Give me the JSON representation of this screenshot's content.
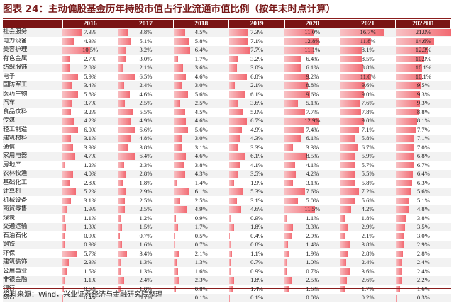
{
  "title": "图表 24：主动偏股基金历年持股市值占行业流通市值比例（按年末时点计算）",
  "source": "资料来源：Wind，兴业证券经济与金融研究院整理",
  "colors": {
    "header_bg": "#7a1414",
    "bar_light": "#f8c2c5",
    "bar_dark": "#f26a72",
    "title": "#7a1c1c"
  },
  "table": {
    "corner": "",
    "columns": [
      "2016",
      "2017",
      "2018",
      "2019",
      "2020",
      "2021",
      "2022H1"
    ],
    "max_value": 21.0,
    "rows": [
      {
        "industry": "社会服务",
        "values": [
          7.3,
          3.8,
          4.5,
          7.3,
          11.0,
          16.7,
          21.0
        ],
        "labels": [
          "7.3%",
          "3.8%",
          "4.5%",
          "7.3%",
          "11.0%",
          "16.7%",
          "21.0%"
        ]
      },
      {
        "industry": "电力设备",
        "values": [
          4.3,
          5.1,
          5.8,
          7.1,
          12.8,
          11.8,
          14.6
        ],
        "labels": [
          "4.3%",
          "5.1%",
          "5.8%",
          "7.1%",
          "12.8%",
          "11.8%",
          "14.6%"
        ]
      },
      {
        "industry": "美容护理",
        "values": [
          10.5,
          3.2,
          6.4,
          7.7,
          11.1,
          8.1,
          12.3
        ],
        "labels": [
          "10.5%",
          "3.2%",
          "6.4%",
          "7.7%",
          "11.1%",
          "8.1%",
          "12.3%"
        ]
      },
      {
        "industry": "有色金属",
        "values": [
          2.7,
          3.0,
          1.7,
          3.2,
          6.4,
          8.5,
          10.9
        ],
        "labels": [
          "2.7%",
          "3.0%",
          "1.7%",
          "3.2%",
          "6.4%",
          "8.5%",
          "10.9%"
        ]
      },
      {
        "industry": "纺织服饰",
        "values": [
          2.8,
          2.1,
          3.6,
          3.0,
          6.1,
          8.8,
          10.1
        ],
        "labels": [
          "2.8%",
          "2.1%",
          "3.6%",
          "3.0%",
          "6.1%",
          "8.8%",
          "10.1%"
        ]
      },
      {
        "industry": "电子",
        "values": [
          5.9,
          6.5,
          4.6,
          6.8,
          9.2,
          11.6,
          10.1
        ],
        "labels": [
          "5.9%",
          "6.5%",
          "4.6%",
          "6.8%",
          "9.2%",
          "11.6%",
          "10.1%"
        ]
      },
      {
        "industry": "国防军工",
        "values": [
          3.4,
          2.4,
          3.0,
          2.1,
          8.8,
          9.6,
          9.5
        ],
        "labels": [
          "3.4%",
          "2.4%",
          "3.0%",
          "2.1%",
          "8.8%",
          "9.6%",
          "9.5%"
        ]
      },
      {
        "industry": "医药生物",
        "values": [
          5.8,
          4.6,
          5.6,
          6.1,
          9.6,
          9.0,
          9.3
        ],
        "labels": [
          "5.8%",
          "4.6%",
          "5.6%",
          "6.1%",
          "9.6%",
          "9.0%",
          "9.3%"
        ]
      },
      {
        "industry": "汽车",
        "values": [
          3.7,
          2.5,
          2.5,
          3.6,
          5.1,
          7.6,
          9.3
        ],
        "labels": [
          "3.7%",
          "2.5%",
          "2.5%",
          "3.6%",
          "5.1%",
          "7.6%",
          "9.3%"
        ]
      },
      {
        "industry": "食品饮料",
        "values": [
          3.2,
          5.5,
          4.5,
          5.0,
          7.7,
          7.8,
          8.8
        ],
        "labels": [
          "3.2%",
          "5.5%",
          "4.5%",
          "5.0%",
          "7.7%",
          "7.8%",
          "8.8%"
        ]
      },
      {
        "industry": "传媒",
        "values": [
          4.2,
          4.9,
          4.6,
          6.7,
          12.9,
          9.0,
          8.1
        ],
        "labels": [
          "4.2%",
          "4.9%",
          "4.6%",
          "6.7%",
          "12.9%",
          "9.0%",
          "8.1%"
        ]
      },
      {
        "industry": "轻工制造",
        "values": [
          6.0,
          6.6,
          5.6,
          4.9,
          7.4,
          7.1,
          7.7
        ],
        "labels": [
          "6.0%",
          "6.6%",
          "5.6%",
          "4.9%",
          "7.4%",
          "7.1%",
          "7.7%"
        ]
      },
      {
        "industry": "建筑材料",
        "values": [
          3.1,
          4.8,
          3.0,
          4.3,
          6.1,
          5.8,
          7.1
        ],
        "labels": [
          "3.1%",
          "4.8%",
          "3.0%",
          "4.3%",
          "6.1%",
          "5.8%",
          "7.1%"
        ]
      },
      {
        "industry": "通信",
        "values": [
          3.9,
          3.8,
          3.1,
          3.3,
          3.3,
          6.7,
          7.0
        ],
        "labels": [
          "3.9%",
          "3.8%",
          "3.1%",
          "3.3%",
          "3.3%",
          "6.7%",
          "7.0%"
        ]
      },
      {
        "industry": "家用电器",
        "values": [
          4.7,
          6.4,
          4.6,
          6.1,
          8.5,
          5.9,
          6.8
        ],
        "labels": [
          "4.7%",
          "6.4%",
          "4.6%",
          "6.1%",
          "8.5%",
          "5.9%",
          "6.8%"
        ]
      },
      {
        "industry": "房地产",
        "values": [
          1.2,
          2.3,
          3.8,
          4.1,
          4.1,
          5.7,
          6.7
        ],
        "labels": [
          "1.2%",
          "2.3%",
          "3.8%",
          "4.1%",
          "4.1%",
          "5.7%",
          "6.7%"
        ]
      },
      {
        "industry": "农林牧渔",
        "values": [
          4.0,
          2.8,
          4.3,
          3.5,
          4.2,
          5.5,
          6.4
        ],
        "labels": [
          "4.0%",
          "2.8%",
          "4.3%",
          "3.5%",
          "4.2%",
          "5.5%",
          "6.4%"
        ]
      },
      {
        "industry": "基础化工",
        "values": [
          2.8,
          1.8,
          1.4,
          1.9,
          3.1,
          5.8,
          6.3
        ],
        "labels": [
          "2.8%",
          "1.8%",
          "1.4%",
          "1.9%",
          "3.1%",
          "5.8%",
          "6.3%"
        ]
      },
      {
        "industry": "计算机",
        "values": [
          5.2,
          2.9,
          6.1,
          5.3,
          7.6,
          7.2,
          5.6
        ],
        "labels": [
          "5.2%",
          "2.9%",
          "6.1%",
          "5.3%",
          "7.6%",
          "7.2%",
          "5.6%"
        ]
      },
      {
        "industry": "机械设备",
        "values": [
          3.1,
          2.5,
          2.5,
          3.1,
          5.0,
          5.6,
          5.1
        ],
        "labels": [
          "3.1%",
          "2.5%",
          "2.5%",
          "3.1%",
          "5.0%",
          "5.6%",
          "5.1%"
        ]
      },
      {
        "industry": "商贸零售",
        "values": [
          1.9,
          2.5,
          4.9,
          4.6,
          11.5,
          4.2,
          4.8
        ],
        "labels": [
          "1.9%",
          "2.5%",
          "4.9%",
          "4.6%",
          "11.5%",
          "4.2%",
          "4.8%"
        ]
      },
      {
        "industry": "煤炭",
        "values": [
          1.1,
          1.2,
          0.9,
          0.9,
          1.1,
          1.8,
          3.8
        ],
        "labels": [
          "1.1%",
          "1.2%",
          "0.9%",
          "0.9%",
          "1.1%",
          "1.8%",
          "3.8%"
        ]
      },
      {
        "industry": "交通运输",
        "values": [
          1.3,
          1.5,
          1.7,
          1.8,
          3.3,
          2.9,
          3.5
        ],
        "labels": [
          "1.3%",
          "1.5%",
          "1.7%",
          "1.8%",
          "3.3%",
          "2.9%",
          "3.5%"
        ]
      },
      {
        "industry": "石油石化",
        "values": [
          0.9,
          0.7,
          0.5,
          0.4,
          2.9,
          2.1,
          3.0
        ],
        "labels": [
          "0.9%",
          "0.7%",
          "0.5%",
          "0.4%",
          "2.9%",
          "2.1%",
          "3.0%"
        ]
      },
      {
        "industry": "钢铁",
        "values": [
          0.9,
          1.6,
          0.7,
          0.8,
          1.4,
          3.8,
          2.9
        ],
        "labels": [
          "0.9%",
          "1.6%",
          "0.7%",
          "0.8%",
          "1.4%",
          "3.8%",
          "2.9%"
        ]
      },
      {
        "industry": "环保",
        "values": [
          5.7,
          3.4,
          2.1,
          1.1,
          1.9,
          2.8,
          2.8
        ],
        "labels": [
          "5.7%",
          "3.4%",
          "2.1%",
          "1.1%",
          "1.9%",
          "2.8%",
          "2.8%"
        ]
      },
      {
        "industry": "建筑装饰",
        "values": [
          2.3,
          1.3,
          1.3,
          0.7,
          1.0,
          2.4,
          2.4
        ],
        "labels": [
          "2.3%",
          "1.3%",
          "1.3%",
          "0.7%",
          "1.0%",
          "2.4%",
          "2.4%"
        ]
      },
      {
        "industry": "公用事业",
        "values": [
          1.5,
          1.3,
          1.6,
          0.9,
          0.7,
          3.6,
          2.4
        ],
        "labels": [
          "1.5%",
          "1.3%",
          "1.6%",
          "0.9%",
          "0.7%",
          "3.6%",
          "2.4%"
        ]
      },
      {
        "industry": "非银金融",
        "values": [
          1.1,
          2.4,
          2.3,
          1.8,
          2.5,
          2.6,
          2.2
        ],
        "labels": [
          "1.1%",
          "2.4%",
          "2.3%",
          "1.8%",
          "2.5%",
          "2.6%",
          "2.2%"
        ]
      },
      {
        "industry": "银行",
        "values": [
          0.6,
          1.0,
          0.8,
          1.4,
          1.6,
          1.7,
          1.6
        ],
        "labels": [
          "0.6%",
          "1.0%",
          "0.8%",
          "1.4%",
          "1.6%",
          "1.7%",
          "1.6%"
        ]
      },
      {
        "industry": "综合",
        "values": [
          0.4,
          0.1,
          0.1,
          0.1,
          0.0,
          0.2,
          0.3
        ],
        "labels": [
          "0.4%",
          "0.1%",
          "0.1%",
          "0.1%",
          "0.0%",
          "0.2%",
          "0.3%"
        ]
      }
    ]
  }
}
